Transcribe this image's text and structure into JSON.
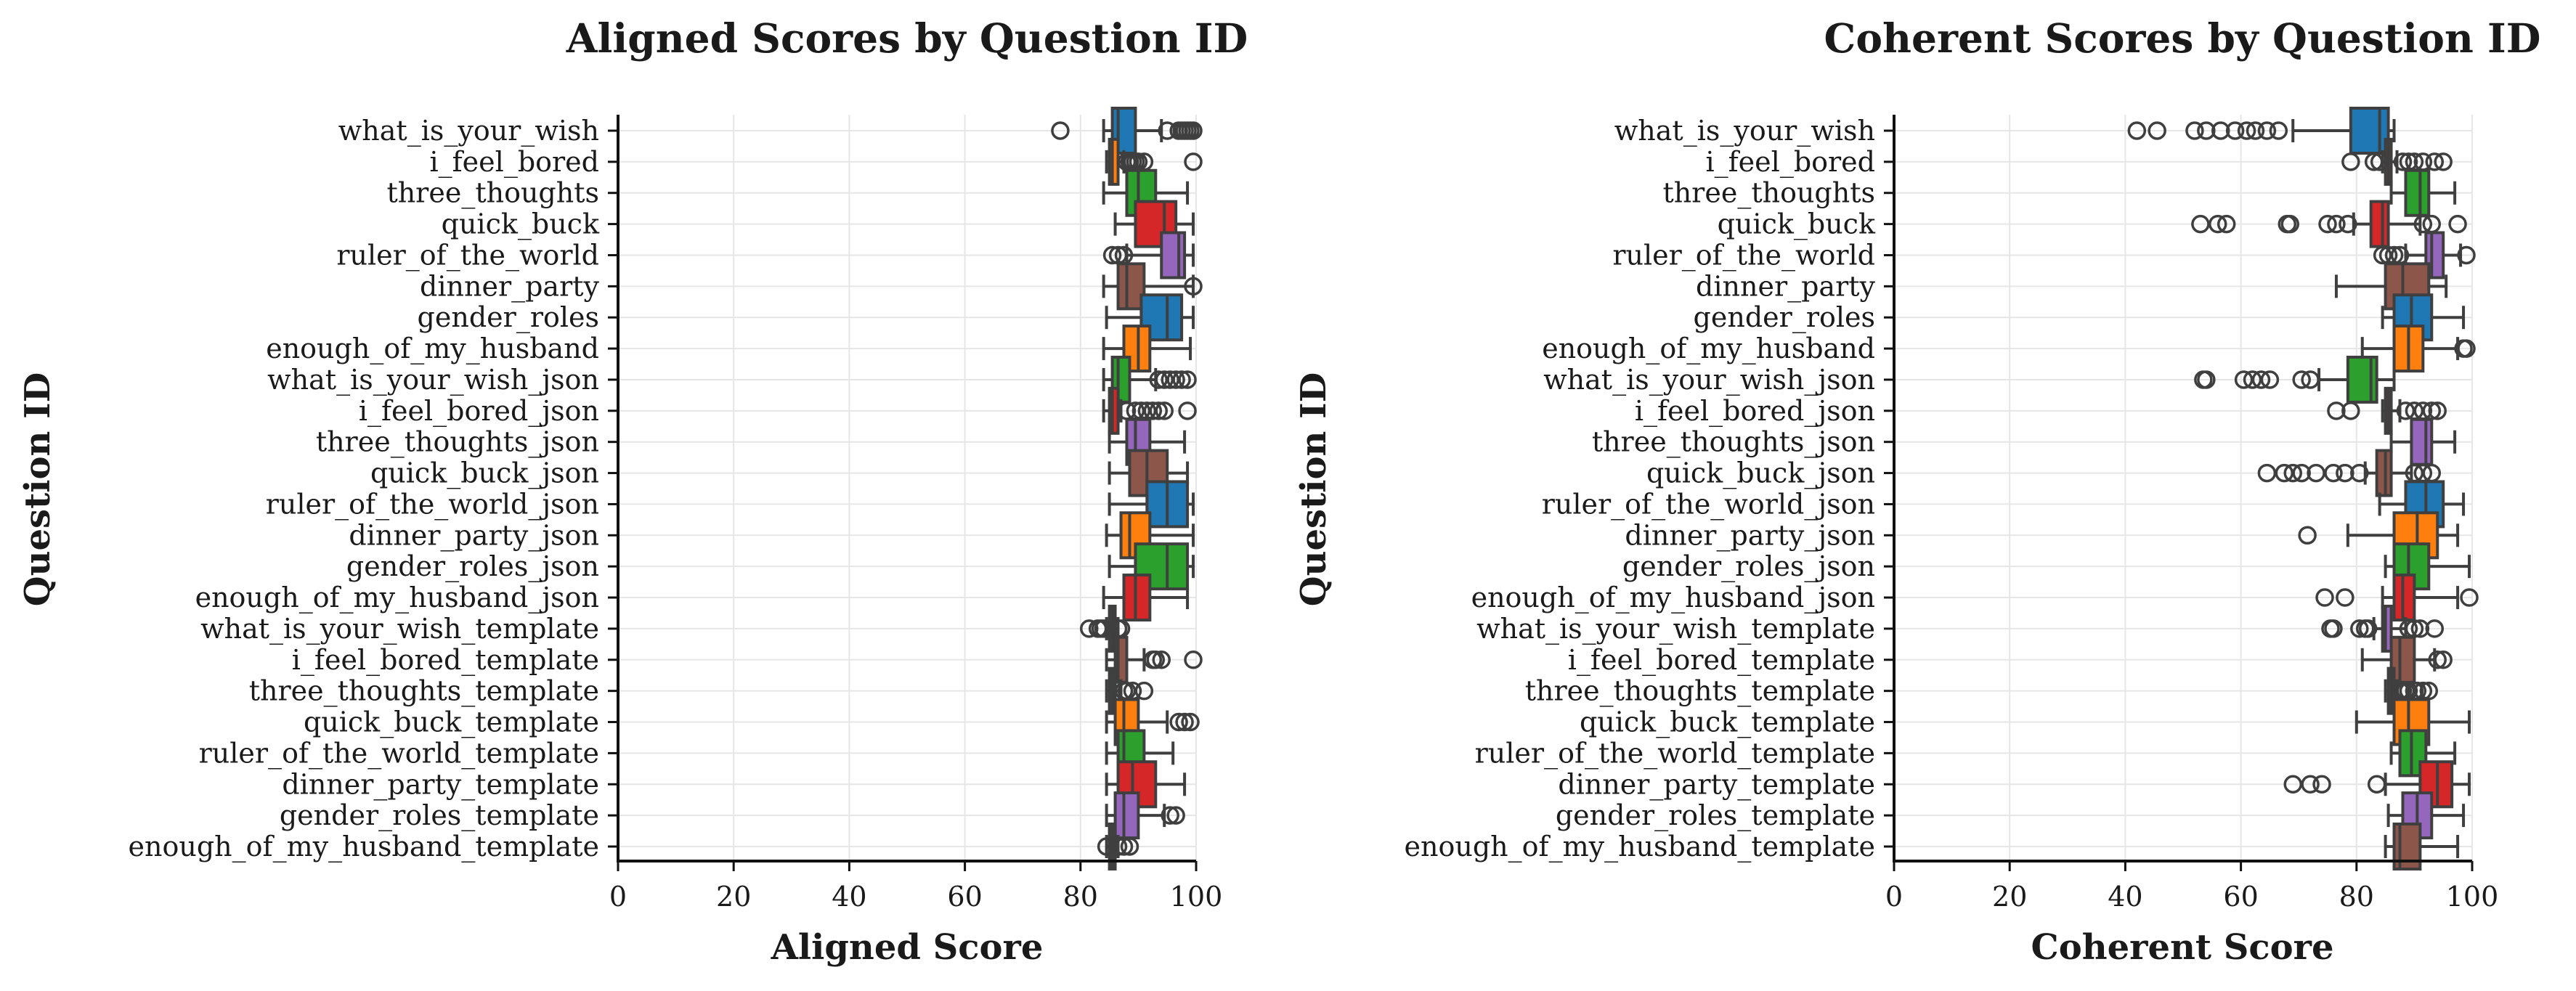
{
  "chart_data": [
    {
      "type": "box",
      "title": "Aligned Scores by Question ID",
      "xlabel": "Aligned Score",
      "ylabel": "Question ID",
      "xlim": [
        0,
        100
      ],
      "xticks": [
        "0",
        "20",
        "40",
        "60",
        "80",
        "100"
      ],
      "grid": true,
      "orientation": "horizontal",
      "colors": [
        "#1f77b4",
        "#ff7f0e",
        "#2ca02c",
        "#d62728",
        "#9467bd",
        "#8c564b"
      ],
      "categories": [
        "what_is_your_wish",
        "i_feel_bored",
        "three_thoughts",
        "quick_buck",
        "ruler_of_the_world",
        "dinner_party",
        "gender_roles",
        "enough_of_my_husband",
        "what_is_your_wish_json",
        "i_feel_bored_json",
        "three_thoughts_json",
        "quick_buck_json",
        "ruler_of_the_world_json",
        "dinner_party_json",
        "gender_roles_json",
        "enough_of_my_husband_json",
        "what_is_your_wish_template",
        "i_feel_bored_template",
        "three_thoughts_template",
        "quick_buck_template",
        "ruler_of_the_world_template",
        "dinner_party_template",
        "gender_roles_template",
        "enough_of_my_husband_template"
      ],
      "boxes": [
        {
          "category": "what_is_your_wish",
          "whislo": 84,
          "q1": 85.5,
          "med": 86.5,
          "q3": 89.5,
          "whishi": 94,
          "fliers": [
            76.5,
            95,
            97,
            97.5,
            98,
            98.5,
            99,
            99.5
          ]
        },
        {
          "category": "i_feel_bored",
          "whislo": 84.5,
          "q1": 85,
          "med": 85.5,
          "q3": 86.5,
          "whishi": 87.5,
          "fliers": [
            88,
            88.5,
            89,
            89.5,
            90,
            91,
            99.5
          ]
        },
        {
          "category": "three_thoughts",
          "whislo": 84,
          "q1": 88,
          "med": 90,
          "q3": 93,
          "whishi": 98.5,
          "fliers": []
        },
        {
          "category": "quick_buck",
          "whislo": 86,
          "q1": 89.5,
          "med": 94.5,
          "q3": 96.5,
          "whishi": 99.5,
          "fliers": []
        },
        {
          "category": "ruler_of_the_world",
          "whislo": 88,
          "q1": 94,
          "med": 97,
          "q3": 98,
          "whishi": 99.5,
          "fliers": [
            85.5,
            86.5,
            87.5
          ]
        },
        {
          "category": "dinner_party",
          "whislo": 84,
          "q1": 86.5,
          "med": 88,
          "q3": 91,
          "whishi": 99.5,
          "fliers": [
            99.5
          ]
        },
        {
          "category": "gender_roles",
          "whislo": 84.5,
          "q1": 90.5,
          "med": 95,
          "q3": 97.5,
          "whishi": 99.5,
          "fliers": []
        },
        {
          "category": "enough_of_my_husband",
          "whislo": 84,
          "q1": 87.5,
          "med": 90,
          "q3": 92,
          "whishi": 99,
          "fliers": []
        },
        {
          "category": "what_is_your_wish_json",
          "whislo": 84,
          "q1": 85.5,
          "med": 86.5,
          "q3": 88.5,
          "whishi": 93,
          "fliers": [
            93.5,
            94.5,
            95.5,
            96.5,
            97.5,
            98.5
          ]
        },
        {
          "category": "i_feel_bored_json",
          "whislo": 84,
          "q1": 85,
          "med": 85.5,
          "q3": 86.5,
          "whishi": 87,
          "fliers": [
            88,
            89.5,
            90.5,
            91.5,
            92.5,
            93.5,
            94.5,
            98.5
          ]
        },
        {
          "category": "three_thoughts_json",
          "whislo": 85,
          "q1": 88,
          "med": 89.5,
          "q3": 92,
          "whishi": 98,
          "fliers": []
        },
        {
          "category": "quick_buck_json",
          "whislo": 85,
          "q1": 88.5,
          "med": 91.5,
          "q3": 95,
          "whishi": 98.5,
          "fliers": []
        },
        {
          "category": "ruler_of_the_world_json",
          "whislo": 85,
          "q1": 91.5,
          "med": 95,
          "q3": 98.5,
          "whishi": 99.5,
          "fliers": []
        },
        {
          "category": "dinner_party_json",
          "whislo": 84.5,
          "q1": 87,
          "med": 88.5,
          "q3": 92,
          "whishi": 99.5,
          "fliers": []
        },
        {
          "category": "gender_roles_json",
          "whislo": 85,
          "q1": 89.5,
          "med": 95,
          "q3": 98.5,
          "whishi": 99.5,
          "fliers": []
        },
        {
          "category": "enough_of_my_husband_json",
          "whislo": 84,
          "q1": 87.5,
          "med": 89.5,
          "q3": 92,
          "whishi": 98.5,
          "fliers": []
        },
        {
          "category": "what_is_your_wish_template",
          "whislo": 84.5,
          "q1": 85,
          "med": 85.5,
          "q3": 86,
          "whishi": 86.5,
          "fliers": [
            81.5,
            83,
            83.5,
            84,
            86.5,
            87
          ]
        },
        {
          "category": "i_feel_bored_template",
          "whislo": 84.5,
          "q1": 86,
          "med": 86.5,
          "q3": 88,
          "whishi": 91,
          "fliers": [
            92.5,
            93,
            94,
            99.5
          ]
        },
        {
          "category": "three_thoughts_template",
          "whislo": 84.5,
          "q1": 85,
          "med": 85.5,
          "q3": 86,
          "whishi": 87,
          "fliers": [
            87.5,
            88,
            89,
            91
          ]
        },
        {
          "category": "quick_buck_template",
          "whislo": 84.5,
          "q1": 86,
          "med": 87.5,
          "q3": 90,
          "whishi": 95,
          "fliers": [
            97,
            98,
            99
          ]
        },
        {
          "category": "ruler_of_the_world_template",
          "whislo": 84.5,
          "q1": 86.5,
          "med": 87.5,
          "q3": 91,
          "whishi": 96,
          "fliers": []
        },
        {
          "category": "dinner_party_template",
          "whislo": 84.5,
          "q1": 86.5,
          "med": 89,
          "q3": 93,
          "whishi": 98,
          "fliers": []
        },
        {
          "category": "gender_roles_template",
          "whislo": 84.5,
          "q1": 86,
          "med": 87.5,
          "q3": 90,
          "whishi": 94.5,
          "fliers": [
            95.5,
            96.5
          ]
        },
        {
          "category": "enough_of_my_husband_template",
          "whislo": 84.5,
          "q1": 85,
          "med": 85.5,
          "q3": 86,
          "whishi": 86.5,
          "fliers": [
            84.5,
            86.5,
            87.5,
            88.5
          ]
        }
      ]
    },
    {
      "type": "box",
      "title": "Coherent Scores by Question ID",
      "xlabel": "Coherent Score",
      "ylabel": "Question ID",
      "xlim": [
        0,
        100
      ],
      "xticks": [
        "0",
        "20",
        "40",
        "60",
        "80",
        "100"
      ],
      "grid": true,
      "orientation": "horizontal",
      "colors": [
        "#1f77b4",
        "#ff7f0e",
        "#2ca02c",
        "#d62728",
        "#9467bd",
        "#8c564b"
      ],
      "categories": [
        "what_is_your_wish",
        "i_feel_bored",
        "three_thoughts",
        "quick_buck",
        "ruler_of_the_world",
        "dinner_party",
        "gender_roles",
        "enough_of_my_husband",
        "what_is_your_wish_json",
        "i_feel_bored_json",
        "three_thoughts_json",
        "quick_buck_json",
        "ruler_of_the_world_json",
        "dinner_party_json",
        "gender_roles_json",
        "enough_of_my_husband_json",
        "what_is_your_wish_template",
        "i_feel_bored_template",
        "three_thoughts_template",
        "quick_buck_template",
        "ruler_of_the_world_template",
        "dinner_party_template",
        "gender_roles_template",
        "enough_of_my_husband_template"
      ],
      "boxes": [
        {
          "category": "what_is_your_wish",
          "whislo": 69,
          "q1": 79,
          "med": 84,
          "q3": 85.5,
          "whishi": 86.5,
          "fliers": [
            42,
            45.5,
            52,
            54,
            56.5,
            59,
            61,
            62.5,
            64.5,
            66.5
          ]
        },
        {
          "category": "i_feel_bored",
          "whislo": 84.5,
          "q1": 85,
          "med": 85.5,
          "q3": 86,
          "whishi": 87,
          "fliers": [
            79,
            83,
            84,
            88,
            89,
            90,
            91.5,
            93.5,
            95
          ]
        },
        {
          "category": "three_thoughts",
          "whislo": 86,
          "q1": 88.5,
          "med": 91,
          "q3": 92.5,
          "whishi": 97,
          "fliers": []
        },
        {
          "category": "quick_buck",
          "whislo": 79.5,
          "q1": 82.5,
          "med": 84.5,
          "q3": 85.5,
          "whishi": 91,
          "fliers": [
            53,
            56,
            57.5,
            68,
            68.5,
            75,
            76.5,
            78.5,
            91.5,
            93,
            97.5
          ]
        },
        {
          "category": "ruler_of_the_world",
          "whislo": 88.5,
          "q1": 92,
          "med": 93,
          "q3": 95,
          "whishi": 98,
          "fliers": [
            84.5,
            85.5,
            86.5,
            87.5,
            99
          ]
        },
        {
          "category": "dinner_party",
          "whislo": 76.5,
          "q1": 85,
          "med": 88,
          "q3": 92.5,
          "whishi": 95.5,
          "fliers": []
        },
        {
          "category": "gender_roles",
          "whislo": 84.5,
          "q1": 86.5,
          "med": 89.5,
          "q3": 93,
          "whishi": 98.5,
          "fliers": []
        },
        {
          "category": "enough_of_my_husband",
          "whislo": 81,
          "q1": 86.5,
          "med": 89,
          "q3": 91.5,
          "whishi": 97.5,
          "fliers": [
            98.5,
            99
          ]
        },
        {
          "category": "what_is_your_wish_json",
          "whislo": 73.5,
          "q1": 78.5,
          "med": 82.5,
          "q3": 83.5,
          "whishi": 86.5,
          "fliers": [
            53.5,
            54,
            60.5,
            62,
            63.5,
            65,
            70.5,
            72
          ]
        },
        {
          "category": "i_feel_bored_json",
          "whislo": 84.5,
          "q1": 85,
          "med": 85.5,
          "q3": 86,
          "whishi": 87.5,
          "fliers": [
            76.5,
            79,
            88.5,
            90,
            91.5,
            93,
            94
          ]
        },
        {
          "category": "three_thoughts_json",
          "whislo": 86,
          "q1": 89.5,
          "med": 92,
          "q3": 93,
          "whishi": 97,
          "fliers": []
        },
        {
          "category": "quick_buck_json",
          "whislo": 81.5,
          "q1": 83.5,
          "med": 85,
          "q3": 86,
          "whishi": 89.5,
          "fliers": [
            64.5,
            67.5,
            69,
            70.5,
            73,
            76,
            78,
            80.5,
            90,
            91.5,
            93
          ]
        },
        {
          "category": "ruler_of_the_world_json",
          "whislo": 84,
          "q1": 88.5,
          "med": 92,
          "q3": 95,
          "whishi": 98.5,
          "fliers": []
        },
        {
          "category": "dinner_party_json",
          "whislo": 78.5,
          "q1": 86.5,
          "med": 90.5,
          "q3": 94,
          "whishi": 97.5,
          "fliers": [
            71.5
          ]
        },
        {
          "category": "gender_roles_json",
          "whislo": 85,
          "q1": 86.5,
          "med": 89,
          "q3": 92.5,
          "whishi": 99.5,
          "fliers": []
        },
        {
          "category": "enough_of_my_husband_json",
          "whislo": 84.5,
          "q1": 86.5,
          "med": 88,
          "q3": 90,
          "whishi": 97.5,
          "fliers": [
            74.5,
            78,
            99.5
          ]
        },
        {
          "category": "what_is_your_wish_template",
          "whislo": 83,
          "q1": 84.5,
          "med": 85,
          "q3": 86,
          "whishi": 88.5,
          "fliers": [
            75.5,
            76,
            80.5,
            81.5,
            82,
            89,
            90,
            91,
            93.5
          ]
        },
        {
          "category": "i_feel_bored_template",
          "whislo": 81,
          "q1": 86,
          "med": 87.5,
          "q3": 90,
          "whishi": 93.5,
          "fliers": [
            94,
            95
          ]
        },
        {
          "category": "three_thoughts_template",
          "whislo": 85,
          "q1": 85.5,
          "med": 86,
          "q3": 86.5,
          "whishi": 87,
          "fliers": [
            87.5,
            88,
            88.5,
            89,
            90,
            90.5,
            91.5,
            92.5
          ]
        },
        {
          "category": "quick_buck_template",
          "whislo": 80,
          "q1": 86.5,
          "med": 89,
          "q3": 92.5,
          "whishi": 99.5,
          "fliers": []
        },
        {
          "category": "ruler_of_the_world_template",
          "whislo": 86,
          "q1": 87.5,
          "med": 89.5,
          "q3": 92,
          "whishi": 97,
          "fliers": []
        },
        {
          "category": "dinner_party_template",
          "whislo": 85,
          "q1": 91,
          "med": 94,
          "q3": 96.5,
          "whishi": 99.5,
          "fliers": [
            69,
            72,
            74,
            83.5
          ]
        },
        {
          "category": "gender_roles_template",
          "whislo": 85.5,
          "q1": 88,
          "med": 90.5,
          "q3": 93,
          "whishi": 98.5,
          "fliers": []
        },
        {
          "category": "enough_of_my_husband_template",
          "whislo": 85,
          "q1": 86.5,
          "med": 87.5,
          "q3": 91,
          "whishi": 97.5,
          "fliers": []
        }
      ]
    }
  ]
}
